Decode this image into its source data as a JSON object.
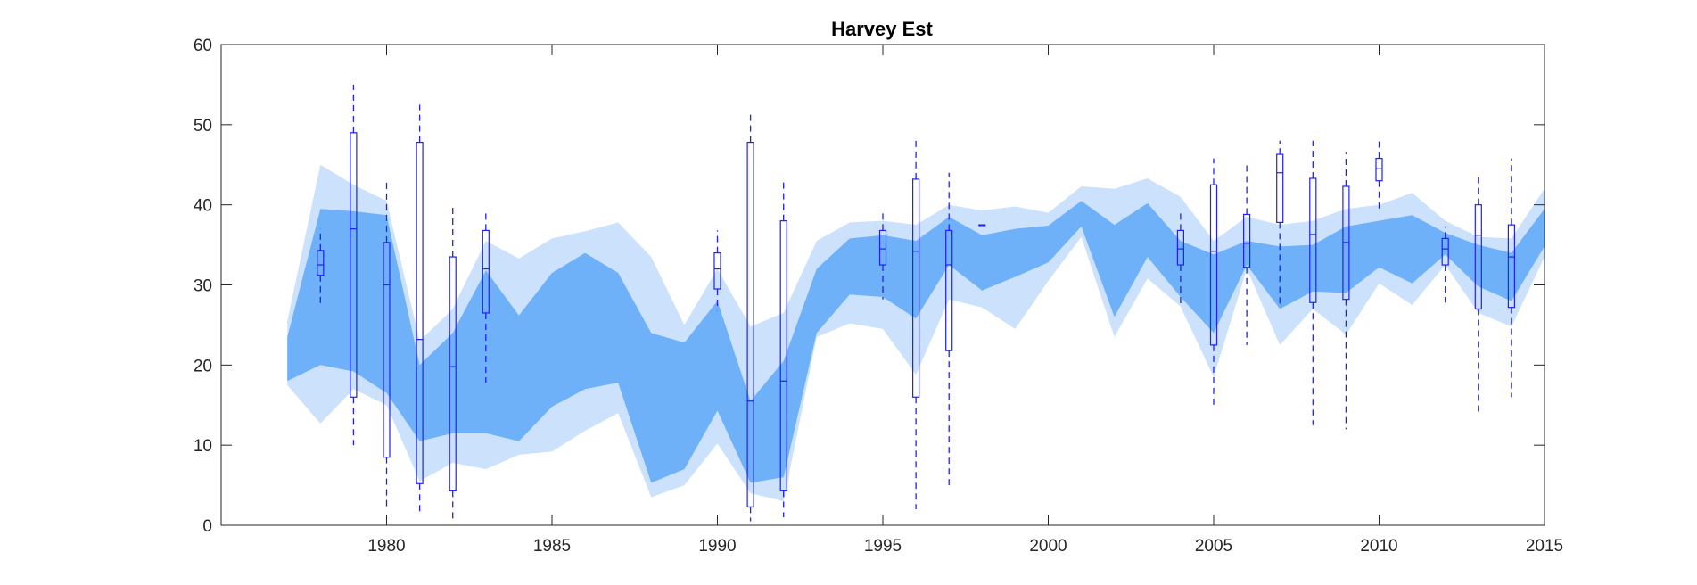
{
  "chart_data": {
    "type": "area",
    "title": "Harvey Est",
    "xlabel": "",
    "ylabel": "",
    "xlim": [
      1975,
      2015
    ],
    "ylim": [
      0,
      60
    ],
    "xticks": [
      1980,
      1985,
      1990,
      1995,
      2000,
      2005,
      2010,
      2015
    ],
    "yticks": [
      0,
      10,
      20,
      30,
      40,
      50,
      60
    ],
    "grid": false,
    "colors": {
      "outer_band": "#cce1fc",
      "inner_band": "#6fb1f9",
      "boxplot": "#1f1fff",
      "axes": "#262626"
    },
    "bands": {
      "x": [
        1977,
        1978,
        1979,
        1980,
        1981,
        1982,
        1983,
        1984,
        1985,
        1986,
        1987,
        1988,
        1989,
        1990,
        1991,
        1992,
        1993,
        1994,
        1995,
        1996,
        1997,
        1998,
        1999,
        2000,
        2001,
        2002,
        2003,
        2004,
        2005,
        2006,
        2007,
        2008,
        2009,
        2010,
        2011,
        2012,
        2013,
        2014,
        2015
      ],
      "outer_upper": [
        25.5,
        45,
        42.5,
        40.5,
        23,
        27,
        35.5,
        33.3,
        35.8,
        36.7,
        37.8,
        33.5,
        25,
        32,
        24.8,
        26.5,
        35.5,
        37.8,
        38,
        37.5,
        40,
        39.3,
        39.8,
        39,
        42.3,
        42,
        43.3,
        41,
        35.5,
        38.5,
        37.5,
        38,
        39.5,
        40,
        41.5,
        38,
        36,
        35.8,
        42
      ],
      "inner_upper": [
        23.5,
        39.5,
        39.2,
        38.7,
        20,
        24,
        31.8,
        26.2,
        31.5,
        34,
        31.5,
        24,
        22.8,
        28,
        15.5,
        20.5,
        32,
        35.8,
        36.2,
        35.5,
        38.5,
        36.2,
        37,
        37.4,
        40.5,
        37.5,
        40.2,
        35.5,
        33.8,
        35.5,
        34.8,
        35,
        37.3,
        38,
        38.7,
        36.5,
        35,
        34,
        39.5
      ],
      "inner_lower": [
        18,
        20,
        19.2,
        16.5,
        10.5,
        11.5,
        11.5,
        10.5,
        14.8,
        17,
        17.8,
        5.3,
        7,
        14.3,
        5.3,
        6,
        24,
        28.8,
        28.5,
        25.8,
        32.5,
        29.3,
        31,
        32.8,
        37.3,
        26,
        33.5,
        28.5,
        24,
        32.5,
        27,
        29.2,
        29,
        32.2,
        30.2,
        33.8,
        29.8,
        28,
        34.8
      ],
      "outer_lower": [
        17.5,
        12.7,
        17,
        15,
        5.5,
        7.8,
        7,
        8.8,
        9.2,
        11.8,
        14,
        3.5,
        5,
        10.2,
        4,
        3,
        23.5,
        25.2,
        24.5,
        18.8,
        28.2,
        27.2,
        24.5,
        30.5,
        36,
        23.5,
        30.8,
        27.3,
        18.5,
        32,
        22.5,
        27,
        23.8,
        30.2,
        27.5,
        32.5,
        26.5,
        24.8,
        33.5
      ]
    },
    "boxplots": [
      {
        "year": 1978,
        "whisker_low": 27.5,
        "q1": 31.2,
        "median": 32.5,
        "q3": 34.3,
        "whisker_high": 37
      },
      {
        "year": 1979,
        "whisker_low": 10,
        "q1": 16,
        "median": 37,
        "q3": 49,
        "whisker_high": 55
      },
      {
        "year": 1980,
        "whisker_low": 2,
        "q1": 8.5,
        "median": 30,
        "q3": 35.3,
        "whisker_high": 42.8
      },
      {
        "year": 1981,
        "whisker_low": 1.2,
        "q1": 5.2,
        "median": 23.2,
        "q3": 47.8,
        "whisker_high": 52.5
      },
      {
        "year": 1982,
        "whisker_low": 0.5,
        "q1": 4.3,
        "median": 19.8,
        "q3": 33.5,
        "whisker_high": 40
      },
      {
        "year": 1983,
        "whisker_low": 17.8,
        "q1": 26.5,
        "median": 32,
        "q3": 36.8,
        "whisker_high": 39
      },
      {
        "year": 1990,
        "whisker_low": 26.8,
        "q1": 29.5,
        "median": 32,
        "q3": 34,
        "whisker_high": 36.8
      },
      {
        "year": 1991,
        "whisker_low": 0.5,
        "q1": 2.3,
        "median": 15.5,
        "q3": 47.8,
        "whisker_high": 51.8
      },
      {
        "year": 1992,
        "whisker_low": 1,
        "q1": 4.3,
        "median": 18,
        "q3": 38,
        "whisker_high": 43
      },
      {
        "year": 1995,
        "whisker_low": 28.2,
        "q1": 32.5,
        "median": 34.5,
        "q3": 36.8,
        "whisker_high": 39.3
      },
      {
        "year": 1996,
        "whisker_low": 2,
        "q1": 16,
        "median": 34.2,
        "q3": 43.2,
        "whisker_high": 48.3
      },
      {
        "year": 1997,
        "whisker_low": 5,
        "q1": 21.8,
        "median": 32.5,
        "q3": 36.8,
        "whisker_high": 44
      },
      {
        "year": 1998,
        "whisker_low": 37.5,
        "q1": 37.5,
        "median": 37.5,
        "q3": 37.5,
        "whisker_high": 37.5
      },
      {
        "year": 2004,
        "whisker_low": 27.3,
        "q1": 32.5,
        "median": 34.5,
        "q3": 36.8,
        "whisker_high": 39
      },
      {
        "year": 2005,
        "whisker_low": 14.8,
        "q1": 22.5,
        "median": 34.2,
        "q3": 42.5,
        "whisker_high": 45.8
      },
      {
        "year": 2006,
        "whisker_low": 22.5,
        "q1": 32.2,
        "median": 35.2,
        "q3": 38.8,
        "whisker_high": 45.2
      },
      {
        "year": 2007,
        "whisker_low": 27.3,
        "q1": 37.8,
        "median": 44,
        "q3": 46.3,
        "whisker_high": 48
      },
      {
        "year": 2008,
        "whisker_low": 12.5,
        "q1": 27.8,
        "median": 36.3,
        "q3": 43.3,
        "whisker_high": 48
      },
      {
        "year": 2009,
        "whisker_low": 12,
        "q1": 28.2,
        "median": 35.3,
        "q3": 42.3,
        "whisker_high": 46.5
      },
      {
        "year": 2010,
        "whisker_low": 39.3,
        "q1": 43,
        "median": 44.5,
        "q3": 45.8,
        "whisker_high": 48.3
      },
      {
        "year": 2012,
        "whisker_low": 27.8,
        "q1": 32.5,
        "median": 34.5,
        "q3": 35.8,
        "whisker_high": 37.3
      },
      {
        "year": 2013,
        "whisker_low": 14,
        "q1": 27,
        "median": 36.2,
        "q3": 40,
        "whisker_high": 44
      },
      {
        "year": 2014,
        "whisker_low": 16,
        "q1": 27.2,
        "median": 33.5,
        "q3": 37.5,
        "whisker_high": 45.8
      }
    ]
  }
}
